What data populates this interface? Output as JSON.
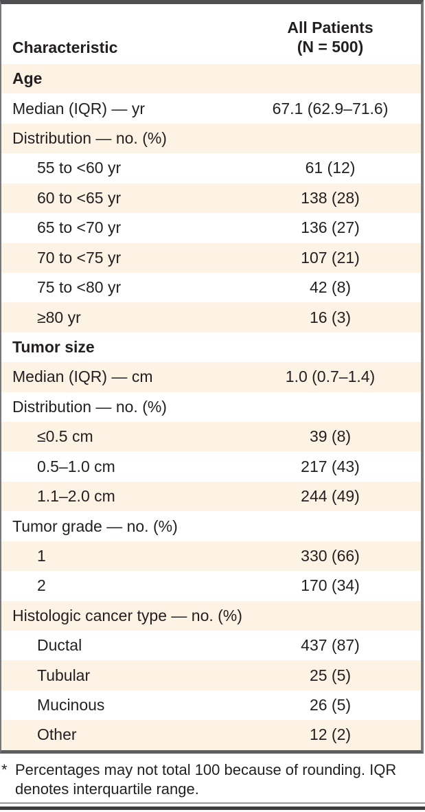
{
  "table": {
    "header": {
      "characteristic": "Characteristic",
      "group_line1": "All Patients",
      "group_line2": "(N = 500)"
    },
    "rows": [
      {
        "label": "Age",
        "value": "",
        "style": "section"
      },
      {
        "label": "Median (IQR) — yr",
        "value": "67.1 (62.9–71.6)",
        "style": "item"
      },
      {
        "label": "Distribution — no. (%)",
        "value": "",
        "style": "item"
      },
      {
        "label": "55 to <60 yr",
        "value": "61 (12)",
        "style": "subitem"
      },
      {
        "label": "60 to <65 yr",
        "value": "138 (28)",
        "style": "subitem"
      },
      {
        "label": "65 to <70 yr",
        "value": "136 (27)",
        "style": "subitem"
      },
      {
        "label": "70 to <75 yr",
        "value": "107 (21)",
        "style": "subitem"
      },
      {
        "label": "75 to <80 yr",
        "value": "42 (8)",
        "style": "subitem"
      },
      {
        "label": "≥80 yr",
        "value": "16 (3)",
        "style": "subitem"
      },
      {
        "label": "Tumor size",
        "value": "",
        "style": "section"
      },
      {
        "label": "Median (IQR) — cm",
        "value": "1.0 (0.7–1.4)",
        "style": "item"
      },
      {
        "label": "Distribution — no. (%)",
        "value": "",
        "style": "item"
      },
      {
        "label": "≤0.5 cm",
        "value": "39 (8)",
        "style": "subitem"
      },
      {
        "label": "0.5–1.0 cm",
        "value": "217 (43)",
        "style": "subitem"
      },
      {
        "label": "1.1–2.0 cm",
        "value": "244 (49)",
        "style": "subitem"
      },
      {
        "label": "Tumor grade — no. (%)",
        "value": "",
        "style": "item"
      },
      {
        "label": "1",
        "value": "330 (66)",
        "style": "subitem"
      },
      {
        "label": "2",
        "value": "170 (34)",
        "style": "subitem"
      },
      {
        "label": "Histologic cancer type — no. (%)",
        "value": "",
        "style": "item"
      },
      {
        "label": "Ductal",
        "value": "437 (87)",
        "style": "subitem"
      },
      {
        "label": "Tubular",
        "value": "25 (5)",
        "style": "subitem"
      },
      {
        "label": "Mucinous",
        "value": "26 (5)",
        "style": "subitem"
      },
      {
        "label": "Other",
        "value": "12 (2)",
        "style": "subitem"
      }
    ]
  },
  "footnote": {
    "marker": "*",
    "text": "Percentages may not total 100 because of rounding. IQR denotes interquartile range."
  },
  "colors": {
    "row_shade": "#fdf3e5",
    "text": "#231f20",
    "rule_dark": "#4e4f51"
  }
}
